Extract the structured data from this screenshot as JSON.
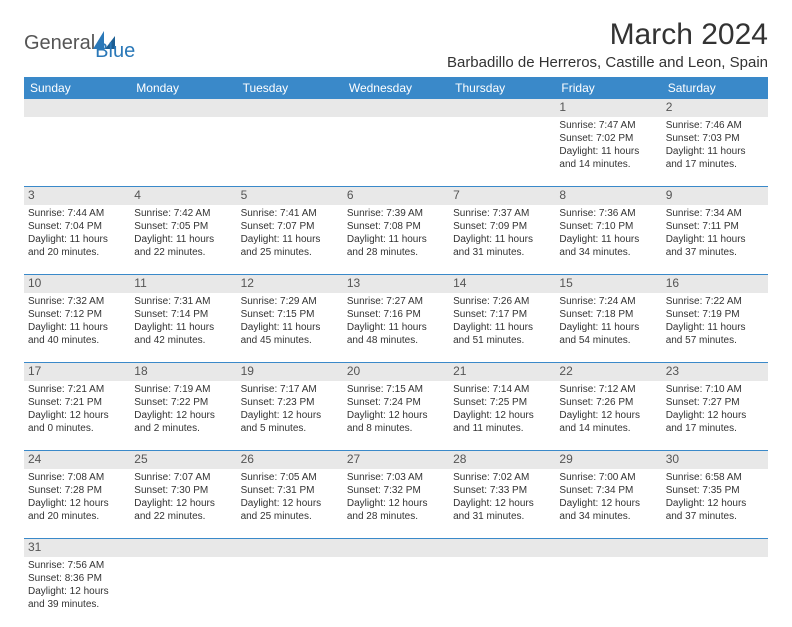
{
  "logo": {
    "general": "General",
    "blue": "Blue"
  },
  "title": "March 2024",
  "location": "Barbadillo de Herreros, Castille and Leon, Spain",
  "colors": {
    "header_bg": "#3a89c9",
    "header_text": "#ffffff",
    "daynum_bg": "#e8e8e8",
    "row_divider": "#3a89c9",
    "logo_blue": "#2a78b8"
  },
  "weekdays": [
    "Sunday",
    "Monday",
    "Tuesday",
    "Wednesday",
    "Thursday",
    "Friday",
    "Saturday"
  ],
  "weeks": [
    [
      null,
      null,
      null,
      null,
      null,
      {
        "n": "1",
        "sr": "Sunrise: 7:47 AM",
        "ss": "Sunset: 7:02 PM",
        "dl1": "Daylight: 11 hours",
        "dl2": "and 14 minutes."
      },
      {
        "n": "2",
        "sr": "Sunrise: 7:46 AM",
        "ss": "Sunset: 7:03 PM",
        "dl1": "Daylight: 11 hours",
        "dl2": "and 17 minutes."
      }
    ],
    [
      {
        "n": "3",
        "sr": "Sunrise: 7:44 AM",
        "ss": "Sunset: 7:04 PM",
        "dl1": "Daylight: 11 hours",
        "dl2": "and 20 minutes."
      },
      {
        "n": "4",
        "sr": "Sunrise: 7:42 AM",
        "ss": "Sunset: 7:05 PM",
        "dl1": "Daylight: 11 hours",
        "dl2": "and 22 minutes."
      },
      {
        "n": "5",
        "sr": "Sunrise: 7:41 AM",
        "ss": "Sunset: 7:07 PM",
        "dl1": "Daylight: 11 hours",
        "dl2": "and 25 minutes."
      },
      {
        "n": "6",
        "sr": "Sunrise: 7:39 AM",
        "ss": "Sunset: 7:08 PM",
        "dl1": "Daylight: 11 hours",
        "dl2": "and 28 minutes."
      },
      {
        "n": "7",
        "sr": "Sunrise: 7:37 AM",
        "ss": "Sunset: 7:09 PM",
        "dl1": "Daylight: 11 hours",
        "dl2": "and 31 minutes."
      },
      {
        "n": "8",
        "sr": "Sunrise: 7:36 AM",
        "ss": "Sunset: 7:10 PM",
        "dl1": "Daylight: 11 hours",
        "dl2": "and 34 minutes."
      },
      {
        "n": "9",
        "sr": "Sunrise: 7:34 AM",
        "ss": "Sunset: 7:11 PM",
        "dl1": "Daylight: 11 hours",
        "dl2": "and 37 minutes."
      }
    ],
    [
      {
        "n": "10",
        "sr": "Sunrise: 7:32 AM",
        "ss": "Sunset: 7:12 PM",
        "dl1": "Daylight: 11 hours",
        "dl2": "and 40 minutes."
      },
      {
        "n": "11",
        "sr": "Sunrise: 7:31 AM",
        "ss": "Sunset: 7:14 PM",
        "dl1": "Daylight: 11 hours",
        "dl2": "and 42 minutes."
      },
      {
        "n": "12",
        "sr": "Sunrise: 7:29 AM",
        "ss": "Sunset: 7:15 PM",
        "dl1": "Daylight: 11 hours",
        "dl2": "and 45 minutes."
      },
      {
        "n": "13",
        "sr": "Sunrise: 7:27 AM",
        "ss": "Sunset: 7:16 PM",
        "dl1": "Daylight: 11 hours",
        "dl2": "and 48 minutes."
      },
      {
        "n": "14",
        "sr": "Sunrise: 7:26 AM",
        "ss": "Sunset: 7:17 PM",
        "dl1": "Daylight: 11 hours",
        "dl2": "and 51 minutes."
      },
      {
        "n": "15",
        "sr": "Sunrise: 7:24 AM",
        "ss": "Sunset: 7:18 PM",
        "dl1": "Daylight: 11 hours",
        "dl2": "and 54 minutes."
      },
      {
        "n": "16",
        "sr": "Sunrise: 7:22 AM",
        "ss": "Sunset: 7:19 PM",
        "dl1": "Daylight: 11 hours",
        "dl2": "and 57 minutes."
      }
    ],
    [
      {
        "n": "17",
        "sr": "Sunrise: 7:21 AM",
        "ss": "Sunset: 7:21 PM",
        "dl1": "Daylight: 12 hours",
        "dl2": "and 0 minutes."
      },
      {
        "n": "18",
        "sr": "Sunrise: 7:19 AM",
        "ss": "Sunset: 7:22 PM",
        "dl1": "Daylight: 12 hours",
        "dl2": "and 2 minutes."
      },
      {
        "n": "19",
        "sr": "Sunrise: 7:17 AM",
        "ss": "Sunset: 7:23 PM",
        "dl1": "Daylight: 12 hours",
        "dl2": "and 5 minutes."
      },
      {
        "n": "20",
        "sr": "Sunrise: 7:15 AM",
        "ss": "Sunset: 7:24 PM",
        "dl1": "Daylight: 12 hours",
        "dl2": "and 8 minutes."
      },
      {
        "n": "21",
        "sr": "Sunrise: 7:14 AM",
        "ss": "Sunset: 7:25 PM",
        "dl1": "Daylight: 12 hours",
        "dl2": "and 11 minutes."
      },
      {
        "n": "22",
        "sr": "Sunrise: 7:12 AM",
        "ss": "Sunset: 7:26 PM",
        "dl1": "Daylight: 12 hours",
        "dl2": "and 14 minutes."
      },
      {
        "n": "23",
        "sr": "Sunrise: 7:10 AM",
        "ss": "Sunset: 7:27 PM",
        "dl1": "Daylight: 12 hours",
        "dl2": "and 17 minutes."
      }
    ],
    [
      {
        "n": "24",
        "sr": "Sunrise: 7:08 AM",
        "ss": "Sunset: 7:28 PM",
        "dl1": "Daylight: 12 hours",
        "dl2": "and 20 minutes."
      },
      {
        "n": "25",
        "sr": "Sunrise: 7:07 AM",
        "ss": "Sunset: 7:30 PM",
        "dl1": "Daylight: 12 hours",
        "dl2": "and 22 minutes."
      },
      {
        "n": "26",
        "sr": "Sunrise: 7:05 AM",
        "ss": "Sunset: 7:31 PM",
        "dl1": "Daylight: 12 hours",
        "dl2": "and 25 minutes."
      },
      {
        "n": "27",
        "sr": "Sunrise: 7:03 AM",
        "ss": "Sunset: 7:32 PM",
        "dl1": "Daylight: 12 hours",
        "dl2": "and 28 minutes."
      },
      {
        "n": "28",
        "sr": "Sunrise: 7:02 AM",
        "ss": "Sunset: 7:33 PM",
        "dl1": "Daylight: 12 hours",
        "dl2": "and 31 minutes."
      },
      {
        "n": "29",
        "sr": "Sunrise: 7:00 AM",
        "ss": "Sunset: 7:34 PM",
        "dl1": "Daylight: 12 hours",
        "dl2": "and 34 minutes."
      },
      {
        "n": "30",
        "sr": "Sunrise: 6:58 AM",
        "ss": "Sunset: 7:35 PM",
        "dl1": "Daylight: 12 hours",
        "dl2": "and 37 minutes."
      }
    ],
    [
      {
        "n": "31",
        "sr": "Sunrise: 7:56 AM",
        "ss": "Sunset: 8:36 PM",
        "dl1": "Daylight: 12 hours",
        "dl2": "and 39 minutes."
      },
      null,
      null,
      null,
      null,
      null,
      null
    ]
  ]
}
